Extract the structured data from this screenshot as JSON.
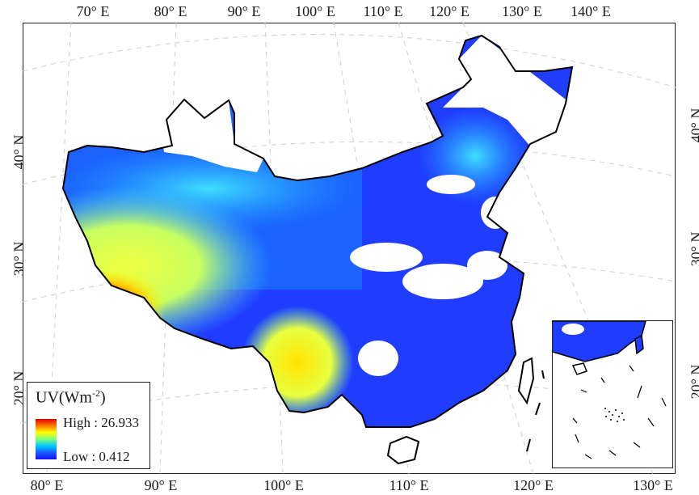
{
  "axes": {
    "top_ticks": [
      "70° E",
      "80° E",
      "90° E",
      "100° E",
      "110° E",
      "120° E",
      "130° E",
      "140° E"
    ],
    "bottom_ticks": [
      "80° E",
      "90° E",
      "100° E",
      "110° E",
      "120° E",
      "130° E"
    ],
    "left_ticks": [
      "40° N",
      "30° N",
      "20° N"
    ],
    "right_ticks": [
      "40° N",
      "30° N",
      "20° N"
    ]
  },
  "legend": {
    "title": "UV(Wm",
    "title_sup": "-2",
    "title_close": ")",
    "high_label": "High : 26.933",
    "low_label": "Low : 0.412",
    "colors": [
      "#e00000",
      "#ff7a00",
      "#ffff00",
      "#7fff7f",
      "#00c8ff",
      "#1a5aff",
      "#1010ff"
    ]
  },
  "colors": {
    "high": "#e00000",
    "mid": "#ffff00",
    "low": "#1010ff",
    "nodata": "#ffffff",
    "boundary": "#000000",
    "graticule": "#c8c8c8"
  }
}
